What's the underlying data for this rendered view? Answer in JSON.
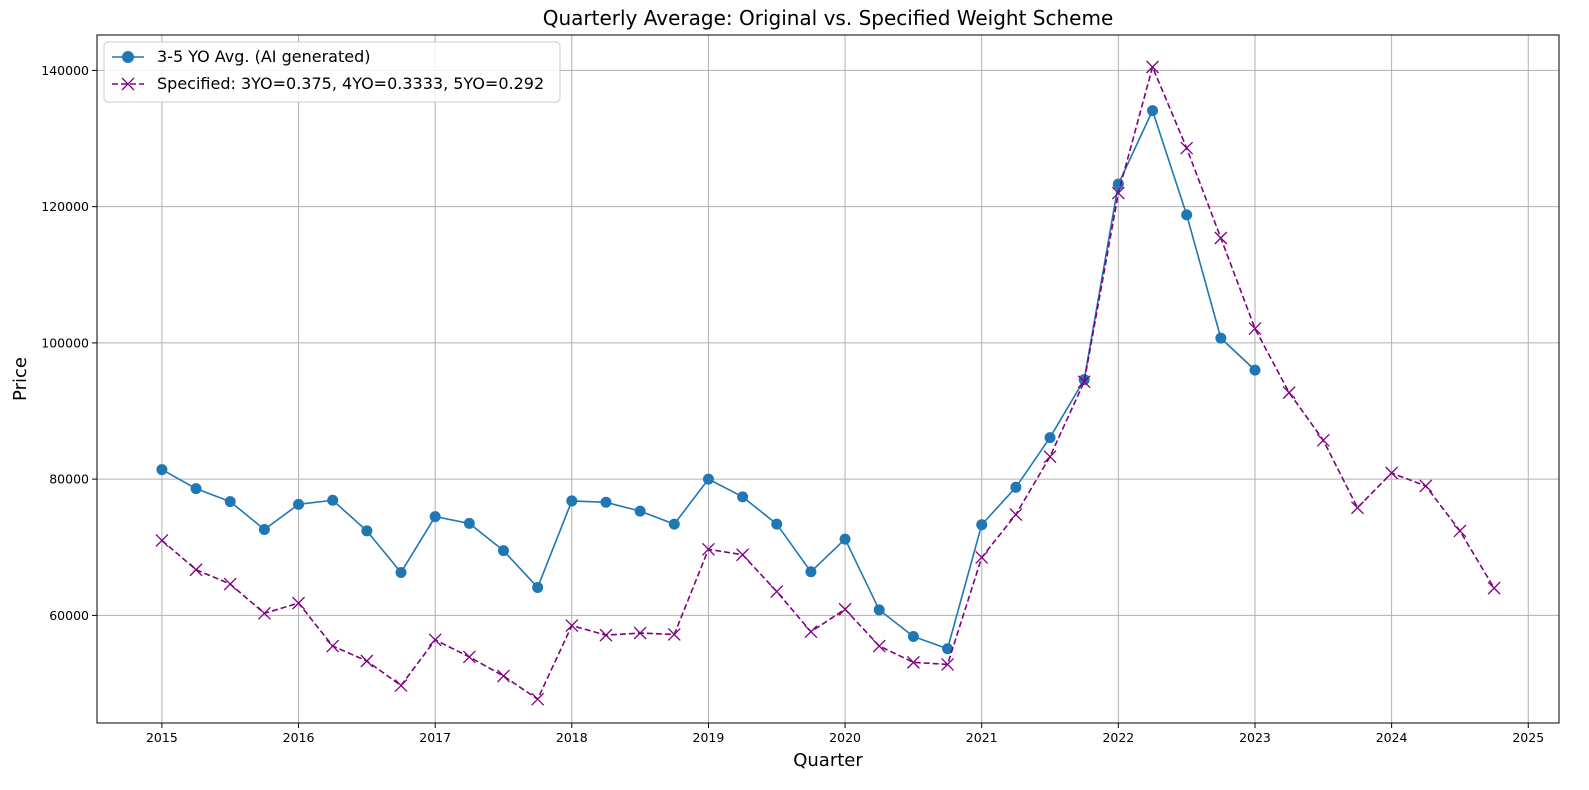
{
  "chart_data": {
    "type": "line",
    "title": "Quarterly Average: Original vs. Specified Weight Scheme",
    "xlabel": "Quarter",
    "ylabel": "Price",
    "xlim": [
      2014.525,
      2025.225
    ],
    "ylim": [
      44200,
      145200
    ],
    "x_ticks": [
      2015,
      2016,
      2017,
      2018,
      2019,
      2020,
      2021,
      2022,
      2023,
      2024,
      2025
    ],
    "x_tick_labels": [
      "2015",
      "2016",
      "2017",
      "2018",
      "2019",
      "2020",
      "2021",
      "2022",
      "2023",
      "2024",
      "2025"
    ],
    "y_ticks": [
      60000,
      80000,
      100000,
      120000,
      140000
    ],
    "y_tick_labels": [
      "60000",
      "80000",
      "100000",
      "120000",
      "140000"
    ],
    "grid": true,
    "legend_position": "top-left",
    "series": [
      {
        "name": "3-5 YO Avg. (AI generated)",
        "color": "#1f77b4",
        "line_style": "solid",
        "marker": "circle",
        "x": [
          2015.0,
          2015.25,
          2015.5,
          2015.75,
          2016.0,
          2016.25,
          2016.5,
          2016.75,
          2017.0,
          2017.25,
          2017.5,
          2017.75,
          2018.0,
          2018.25,
          2018.5,
          2018.75,
          2019.0,
          2019.25,
          2019.5,
          2019.75,
          2020.0,
          2020.25,
          2020.5,
          2020.75,
          2021.0,
          2021.25,
          2021.5,
          2021.75,
          2022.0,
          2022.25,
          2022.5,
          2022.75,
          2023.0
        ],
        "values": [
          81400,
          78600,
          76700,
          72600,
          76300,
          76900,
          72400,
          66300,
          74500,
          73500,
          69500,
          64100,
          76800,
          76600,
          75300,
          73400,
          80000,
          77400,
          73400,
          66400,
          71200,
          60800,
          56900,
          55100,
          73300,
          78800,
          86100,
          94600,
          123300,
          134100,
          118800,
          100700,
          96000
        ]
      },
      {
        "name": "Specified: 3YO=0.375, 4YO=0.3333, 5YO=0.292",
        "color": "#800080",
        "line_style": "dashed",
        "marker": "x",
        "x": [
          2015.0,
          2015.25,
          2015.5,
          2015.75,
          2016.0,
          2016.25,
          2016.5,
          2016.75,
          2017.0,
          2017.25,
          2017.5,
          2017.75,
          2018.0,
          2018.25,
          2018.5,
          2018.75,
          2019.0,
          2019.25,
          2019.5,
          2019.75,
          2020.0,
          2020.25,
          2020.5,
          2020.75,
          2021.0,
          2021.25,
          2021.5,
          2021.75,
          2022.0,
          2022.25,
          2022.5,
          2022.75,
          2023.0,
          2023.25,
          2023.5,
          2023.75,
          2024.0,
          2024.25,
          2024.5,
          2024.75
        ],
        "values": [
          71000,
          66700,
          64600,
          60300,
          61800,
          55500,
          53300,
          49700,
          56400,
          53900,
          51100,
          47700,
          58500,
          57100,
          57400,
          57200,
          69700,
          68900,
          63500,
          57600,
          60900,
          55500,
          53100,
          52800,
          68500,
          74800,
          83300,
          94300,
          122000,
          140500,
          128600,
          115400,
          102100,
          92700,
          85700,
          75800,
          80900,
          79000,
          72400,
          64000
        ]
      }
    ]
  }
}
